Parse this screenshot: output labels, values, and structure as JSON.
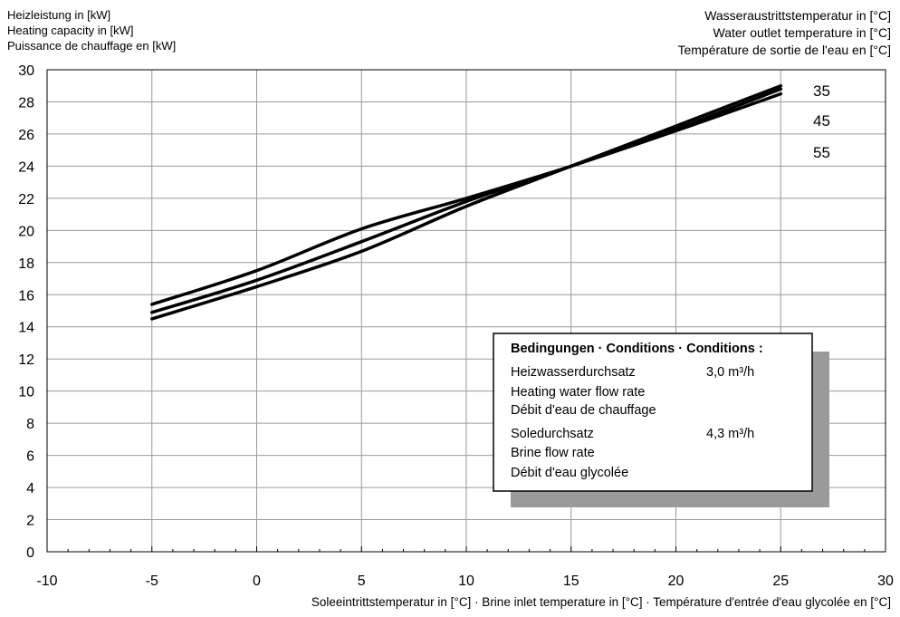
{
  "y_axis_label": [
    "Heizleistung in [kW]",
    "Heating capacity in [kW]",
    "Puissance de chauffage en [kW]"
  ],
  "outlet_label": [
    "Wasseraustrittstemperatur in [°C]",
    "Water outlet temperature in [°C]",
    "Température de sortie de l'eau en [°C]"
  ],
  "x_axis_label": "Soleeintrittstemperatur in [°C] · Brine inlet temperature in [°C] · Température d'entrée d'eau glycolée en [°C]",
  "conditions": {
    "title": "Bedingungen · Conditions · Conditions :",
    "heating_water": {
      "lines": [
        "Heizwasserdurchsatz",
        "Heating water flow rate",
        "Débit d'eau de chauffage"
      ],
      "value": "3,0 m³/h"
    },
    "brine": {
      "lines": [
        "Soledurchsatz",
        "Brine flow rate",
        "Débit d'eau glycolée"
      ],
      "value": "4,3 m³/h"
    }
  },
  "chart_data": {
    "type": "line",
    "xlabel": "Soleeintrittstemperatur in [°C] · Brine inlet temperature in [°C] · Température d'entrée d'eau glycolée en [°C]",
    "ylabel": "Heizleistung in [kW] · Heating capacity in [kW] · Puissance de chauffage en [kW]",
    "xlim": [
      -10,
      30
    ],
    "ylim": [
      0,
      30
    ],
    "xticks": [
      -10,
      -5,
      0,
      5,
      10,
      15,
      20,
      25,
      30
    ],
    "yticks": [
      0,
      2,
      4,
      6,
      8,
      10,
      12,
      14,
      16,
      18,
      20,
      22,
      24,
      26,
      28,
      30
    ],
    "grid": true,
    "series": [
      {
        "name": "35",
        "x": [
          -5,
          0,
          5,
          10,
          15,
          20,
          25
        ],
        "y": [
          14.5,
          16.5,
          18.7,
          21.5,
          24.0,
          26.5,
          29.0
        ]
      },
      {
        "name": "45",
        "x": [
          -5,
          0,
          5,
          10,
          15,
          20,
          25
        ],
        "y": [
          14.9,
          16.9,
          19.3,
          21.8,
          24.0,
          26.3,
          28.8
        ]
      },
      {
        "name": "55",
        "x": [
          -5,
          0,
          5,
          10,
          15,
          20,
          25
        ],
        "y": [
          15.4,
          17.5,
          20.1,
          22.0,
          24.0,
          26.2,
          28.5
        ]
      }
    ]
  }
}
